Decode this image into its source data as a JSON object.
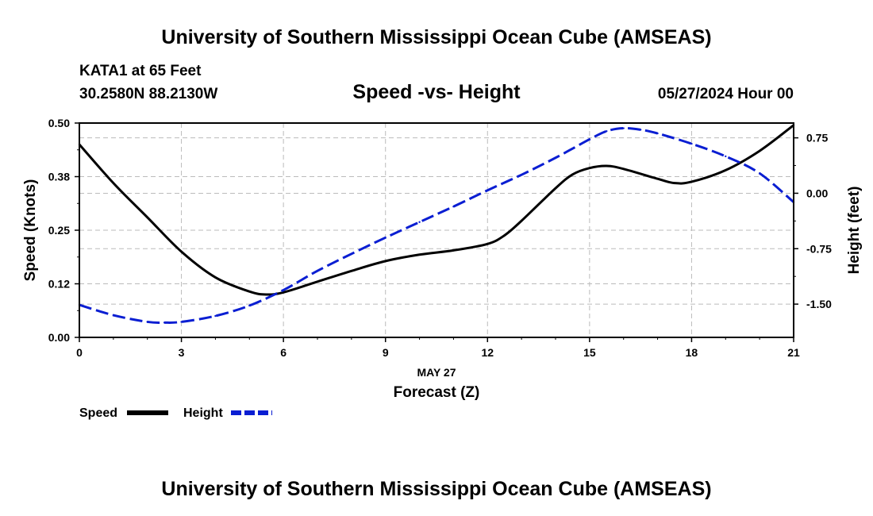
{
  "header": {
    "title": "University of Southern Mississippi Ocean Cube (AMSEAS)",
    "station": "KATA1 at 65 Feet",
    "coords": "30.2580N  88.2130W",
    "date": "05/27/2024 Hour 00",
    "footer_title": "University of Southern Mississippi Ocean Cube (AMSEAS)"
  },
  "colors": {
    "speed": "#000000",
    "height": "#0a1ed2",
    "grid": "#bbbbbb"
  },
  "chart_data": {
    "type": "line",
    "title": "Speed -vs- Height",
    "xlabel_top": "MAY 27",
    "xlabel": "Forecast (Z)",
    "ylabel": "Speed (Knots)",
    "y2label": "Height (feet)",
    "xlim": [
      0,
      21
    ],
    "ylim": [
      0,
      0.5
    ],
    "y2lim": [
      -1.95,
      0.95
    ],
    "x_ticks": [
      0,
      3,
      6,
      9,
      12,
      15,
      18,
      21
    ],
    "x_tick_labels": [
      "0",
      "3",
      "6",
      "9",
      "12",
      "15",
      "18",
      "21"
    ],
    "y_ticks": [
      0,
      0.125,
      0.25,
      0.375,
      0.5
    ],
    "y_tick_labels": [
      "0.00",
      "0.12",
      "0.25",
      "0.38",
      "0.50"
    ],
    "y2_ticks": [
      -1.5,
      -0.75,
      0.0,
      0.75
    ],
    "y2_tick_labels": [
      "-1.50",
      "-0.75",
      "0.00",
      "0.75"
    ],
    "grid": true,
    "legend": "bottom-left",
    "series": [
      {
        "name": "Speed",
        "axis": "left",
        "style": "solid",
        "x": [
          0,
          1,
          2,
          3,
          4,
          5,
          5.5,
          6,
          7,
          8,
          9,
          10,
          11,
          12,
          12.5,
          13,
          14,
          14.5,
          15,
          15.5,
          16,
          17,
          17.5,
          18,
          19,
          20,
          21
        ],
        "values": [
          0.45,
          0.36,
          0.28,
          0.2,
          0.14,
          0.107,
          0.1,
          0.105,
          0.13,
          0.155,
          0.178,
          0.193,
          0.203,
          0.218,
          0.238,
          0.272,
          0.348,
          0.38,
          0.395,
          0.4,
          0.393,
          0.37,
          0.36,
          0.363,
          0.39,
          0.435,
          0.495
        ]
      },
      {
        "name": "Height",
        "axis": "right",
        "style": "dashed",
        "x": [
          0,
          1,
          2,
          2.5,
          3,
          4,
          5,
          6,
          7,
          8,
          9,
          10,
          11,
          12,
          13,
          14,
          15,
          15.5,
          16,
          16.5,
          17,
          18,
          19,
          20,
          21
        ],
        "values": [
          -1.51,
          -1.65,
          -1.74,
          -1.75,
          -1.74,
          -1.66,
          -1.52,
          -1.31,
          -1.05,
          -0.82,
          -0.6,
          -0.39,
          -0.18,
          0.04,
          0.25,
          0.48,
          0.73,
          0.84,
          0.88,
          0.86,
          0.81,
          0.67,
          0.5,
          0.27,
          -0.12
        ]
      }
    ]
  }
}
